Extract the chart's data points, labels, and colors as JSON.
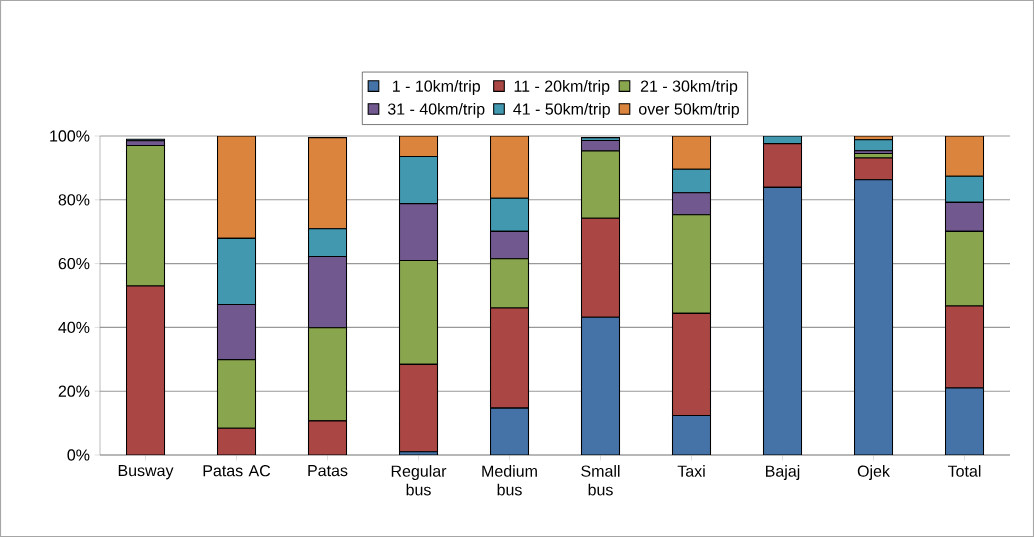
{
  "chart_data": {
    "type": "bar",
    "stacked": true,
    "legend": "top",
    "grid": "y",
    "categories": [
      "Busway",
      "Patas AC",
      "Patas",
      "Regular bus",
      "Medium bus",
      "Small bus",
      "Taxi",
      "Bajaj",
      "Ojek",
      "Total"
    ],
    "ylim": [
      0,
      100
    ],
    "yticks": [
      {
        "value": 0,
        "label": "0%"
      },
      {
        "value": 20,
        "label": "20%"
      },
      {
        "value": 40,
        "label": "40%"
      },
      {
        "value": 60,
        "label": "60%"
      },
      {
        "value": 80,
        "label": "80%"
      },
      {
        "value": 100,
        "label": "100%"
      }
    ],
    "series": [
      {
        "name": "1 - 10km/trip",
        "color": "#4572a7",
        "values": [
          null,
          0,
          null,
          1.0,
          14.7,
          43.2,
          12.4,
          83.9,
          86.3,
          21.0
        ]
      },
      {
        "name": "11 - 20km/trip",
        "color": "#aa4643",
        "values": [
          53,
          8.4,
          10.7,
          27.4,
          31.4,
          31,
          32,
          13.7,
          6.8,
          25.7
        ]
      },
      {
        "name": "21 - 30km/trip",
        "color": "#89a54e",
        "values": [
          44,
          21.5,
          29.2,
          32.6,
          15.4,
          21.1,
          30.9,
          0,
          1.4,
          23.4
        ]
      },
      {
        "name": "31 - 40km/trip",
        "color": "#71588f",
        "values": [
          1.5,
          17.3,
          22.3,
          17.8,
          8.6,
          3.3,
          6.9,
          0,
          0.9,
          9.1
        ]
      },
      {
        "name": "41 - 50km/trip",
        "color": "#4198af",
        "values": [
          0.5,
          20.7,
          8.7,
          14.8,
          10.4,
          0.9,
          7.4,
          2.4,
          3.4,
          8.2
        ]
      },
      {
        "name": "over 50km/trip",
        "color": "#db843d",
        "values": [
          null,
          32.1,
          28.6,
          6.4,
          19.5,
          null,
          10.4,
          0,
          1.2,
          12.6
        ]
      }
    ]
  }
}
